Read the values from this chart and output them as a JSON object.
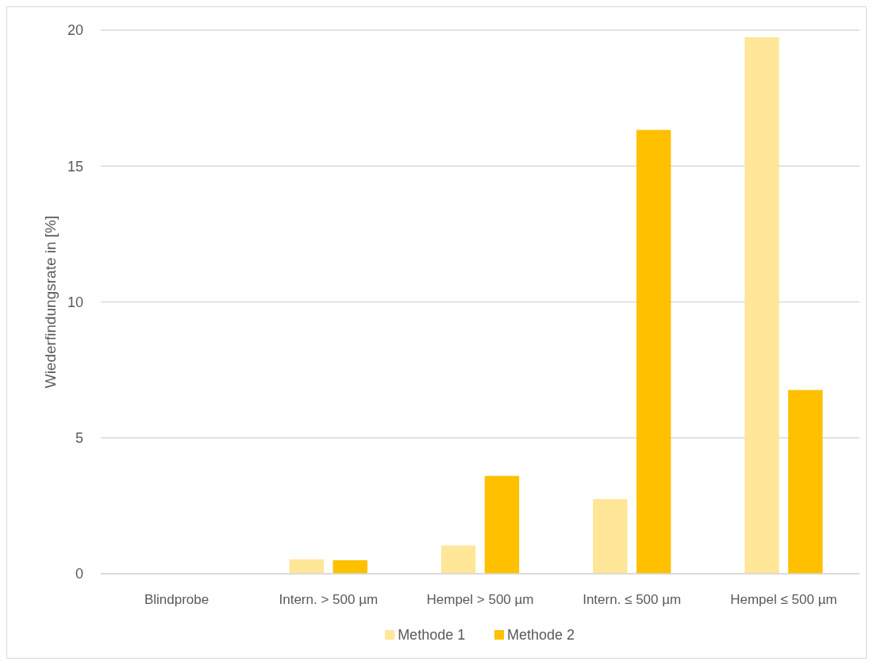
{
  "chart_data": {
    "type": "bar",
    "ylabel": "Wiederfindungsrate in [%]",
    "categories": [
      "Blindprobe",
      "Intern. > 500 µm",
      "Hempel > 500 µm",
      "Intern. ≤ 500 µm",
      "Hempel ≤ 500 µm"
    ],
    "series": [
      {
        "name": "Methode 1",
        "color": "#ffe699",
        "values": [
          0,
          0.53,
          1.04,
          2.75,
          19.74
        ]
      },
      {
        "name": "Methode 2",
        "color": "#ffc000",
        "values": [
          0,
          0.5,
          3.6,
          16.33,
          6.76
        ]
      }
    ],
    "ylim": [
      0,
      20
    ],
    "yticks": [
      0,
      5,
      10,
      15,
      20
    ],
    "grid": "y",
    "legend": "bottom"
  }
}
